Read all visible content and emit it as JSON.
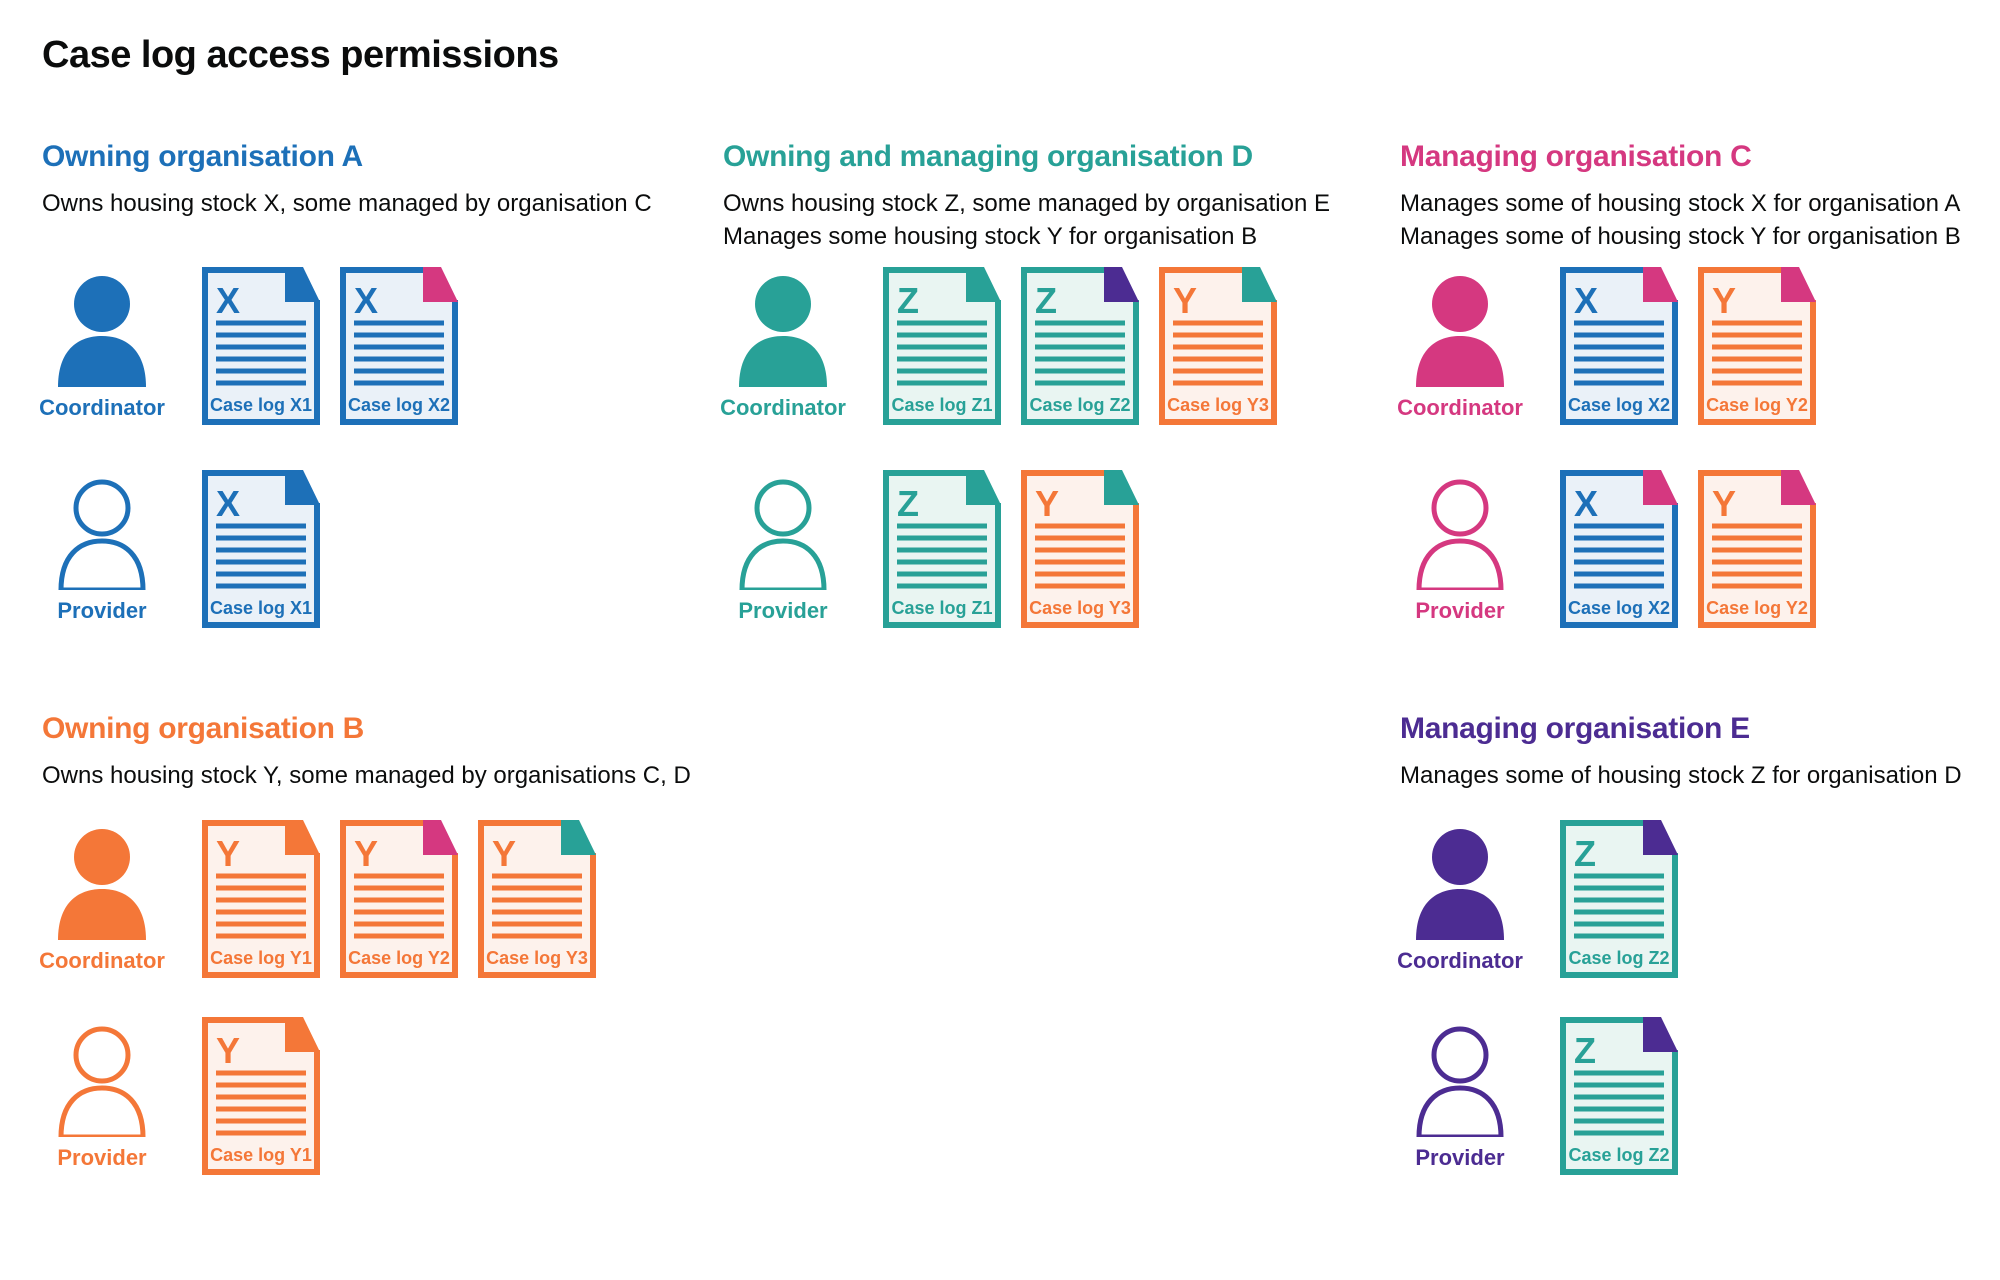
{
  "title": "Case log access permissions",
  "people": {
    "coordinator": "Coordinator",
    "provider": "Provider"
  },
  "colors": {
    "blue": "#1d70b8",
    "teal": "#28a197",
    "pink": "#d53880",
    "orange": "#f47738",
    "purple": "#4c2c92",
    "ink": "#0b0c0c",
    "tint_blue": "#eaf1f8",
    "tint_teal": "#e9f5f2",
    "tint_orange": "#fdf2ec"
  },
  "sections": [
    {
      "id": "org-a",
      "band": "top",
      "color": "blue",
      "heading": "Owning organisation A",
      "description": [
        "Owns housing stock X, some managed by organisation C"
      ],
      "rows": [
        {
          "role": "coordinator",
          "docs": [
            {
              "letter": "X",
              "label": "Case log X1",
              "color": "blue",
              "fold": "blue"
            },
            {
              "letter": "X",
              "label": "Case log X2",
              "color": "blue",
              "fold": "pink"
            }
          ]
        },
        {
          "role": "provider",
          "docs": [
            {
              "letter": "X",
              "label": "Case log X1",
              "color": "blue",
              "fold": "blue"
            }
          ]
        }
      ]
    },
    {
      "id": "org-d",
      "band": "top",
      "color": "teal",
      "heading": "Owning and managing organisation D",
      "description": [
        "Owns housing stock Z, some managed by organisation E",
        "Manages some housing stock Y for organisation B"
      ],
      "rows": [
        {
          "role": "coordinator",
          "docs": [
            {
              "letter": "Z",
              "label": "Case log Z1",
              "color": "teal",
              "fold": "teal"
            },
            {
              "letter": "Z",
              "label": "Case log Z2",
              "color": "teal",
              "fold": "purple"
            },
            {
              "letter": "Y",
              "label": "Case log Y3",
              "color": "orange",
              "fold": "teal"
            }
          ]
        },
        {
          "role": "provider",
          "docs": [
            {
              "letter": "Z",
              "label": "Case log Z1",
              "color": "teal",
              "fold": "teal"
            },
            {
              "letter": "Y",
              "label": "Case log Y3",
              "color": "orange",
              "fold": "teal"
            }
          ]
        }
      ]
    },
    {
      "id": "org-c",
      "band": "top",
      "color": "pink",
      "heading": "Managing organisation C",
      "description": [
        "Manages some of housing stock X for organisation A",
        "Manages some of housing stock Y for organisation B"
      ],
      "rows": [
        {
          "role": "coordinator",
          "docs": [
            {
              "letter": "X",
              "label": "Case log X2",
              "color": "blue",
              "fold": "pink"
            },
            {
              "letter": "Y",
              "label": "Case log Y2",
              "color": "orange",
              "fold": "pink"
            }
          ]
        },
        {
          "role": "provider",
          "docs": [
            {
              "letter": "X",
              "label": "Case log X2",
              "color": "blue",
              "fold": "pink"
            },
            {
              "letter": "Y",
              "label": "Case log Y2",
              "color": "orange",
              "fold": "pink"
            }
          ]
        }
      ]
    },
    {
      "id": "org-b",
      "band": "bottom",
      "color": "orange",
      "heading": "Owning organisation B",
      "description": [
        "Owns housing stock Y, some managed by organisations C, D"
      ],
      "rows": [
        {
          "role": "coordinator",
          "docs": [
            {
              "letter": "Y",
              "label": "Case log Y1",
              "color": "orange",
              "fold": "orange"
            },
            {
              "letter": "Y",
              "label": "Case log Y2",
              "color": "orange",
              "fold": "pink"
            },
            {
              "letter": "Y",
              "label": "Case log Y3",
              "color": "orange",
              "fold": "teal"
            }
          ]
        },
        {
          "role": "provider",
          "docs": [
            {
              "letter": "Y",
              "label": "Case log Y1",
              "color": "orange",
              "fold": "orange"
            }
          ]
        }
      ]
    },
    {
      "id": "org-e",
      "band": "bottom",
      "color": "purple",
      "heading": "Managing organisation E",
      "description": [
        "Manages some of housing stock Z for organisation D"
      ],
      "rows": [
        {
          "role": "coordinator",
          "docs": [
            {
              "letter": "Z",
              "label": "Case log Z2",
              "color": "teal",
              "fold": "purple"
            }
          ]
        },
        {
          "role": "provider",
          "docs": [
            {
              "letter": "Z",
              "label": "Case log Z2",
              "color": "teal",
              "fold": "purple"
            }
          ]
        }
      ]
    }
  ]
}
